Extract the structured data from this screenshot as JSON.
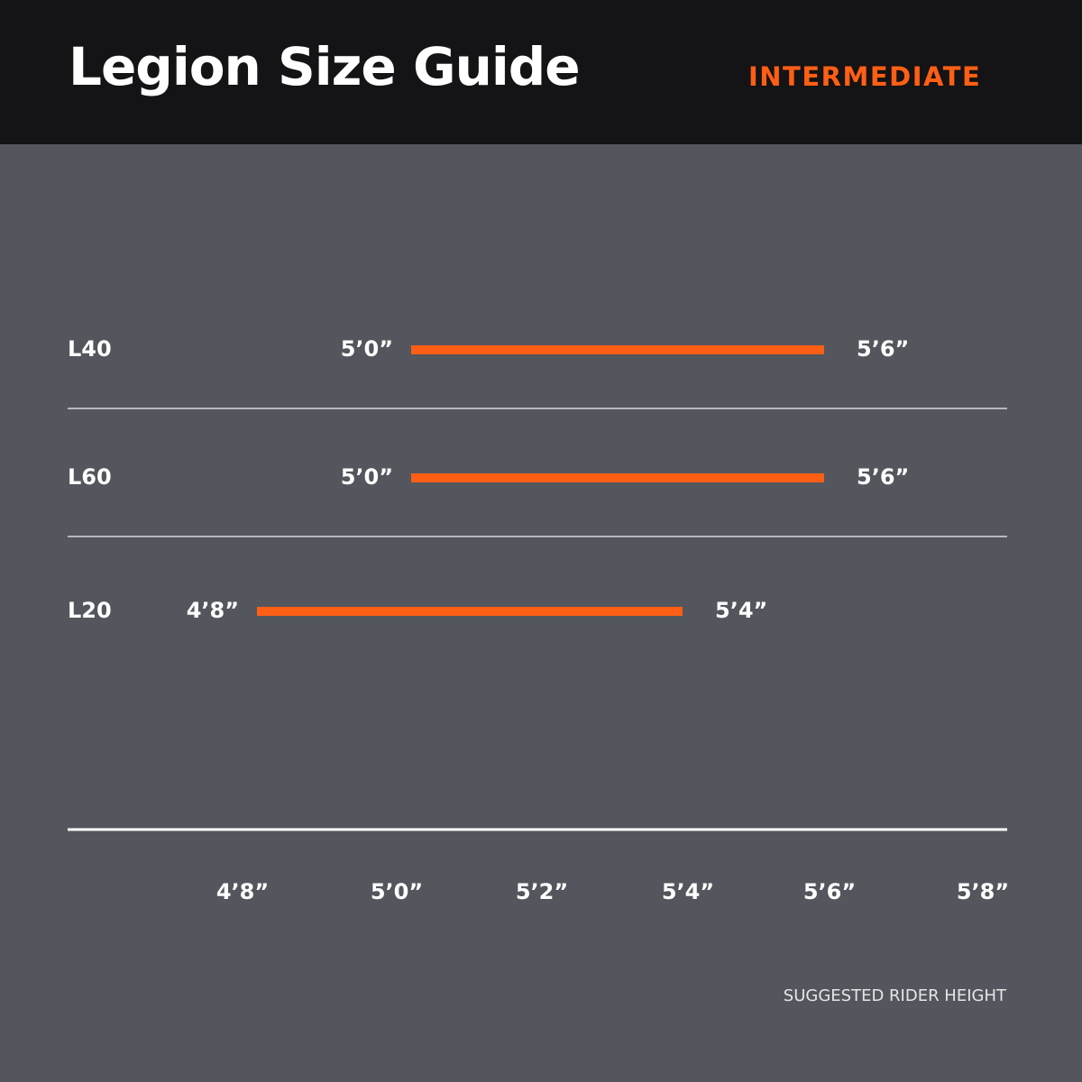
{
  "header": {
    "title": "Legion Size Guide",
    "level": "INTERMEDIATE"
  },
  "colors": {
    "accent": "#ff5f14",
    "header_bg": "#141315",
    "chart_bg": "#54565d",
    "text": "#ffffff"
  },
  "chart_data": {
    "type": "bar",
    "orientation": "horizontal-range",
    "categories": [
      "L40",
      "L60",
      "L20"
    ],
    "ranges": [
      {
        "name": "L40",
        "min": 60,
        "max": 66,
        "min_label": "5’0”",
        "max_label": "5’6”"
      },
      {
        "name": "L60",
        "min": 60,
        "max": 66,
        "min_label": "5’0”",
        "max_label": "5’6”"
      },
      {
        "name": "L20",
        "min": 56,
        "max": 64,
        "min_label": "4’8”",
        "max_label": "5’4”"
      }
    ],
    "x_ticks": [
      {
        "value": 56,
        "label": "4’8”"
      },
      {
        "value": 60,
        "label": "5’0”"
      },
      {
        "value": 62,
        "label": "5’2”"
      },
      {
        "value": 64,
        "label": "5’4”"
      },
      {
        "value": 66,
        "label": "5’6”"
      },
      {
        "value": 68,
        "label": "5’8”"
      }
    ],
    "xlabel": "SUGGESTED RIDER HEIGHT",
    "ylabel": "",
    "title": ""
  }
}
